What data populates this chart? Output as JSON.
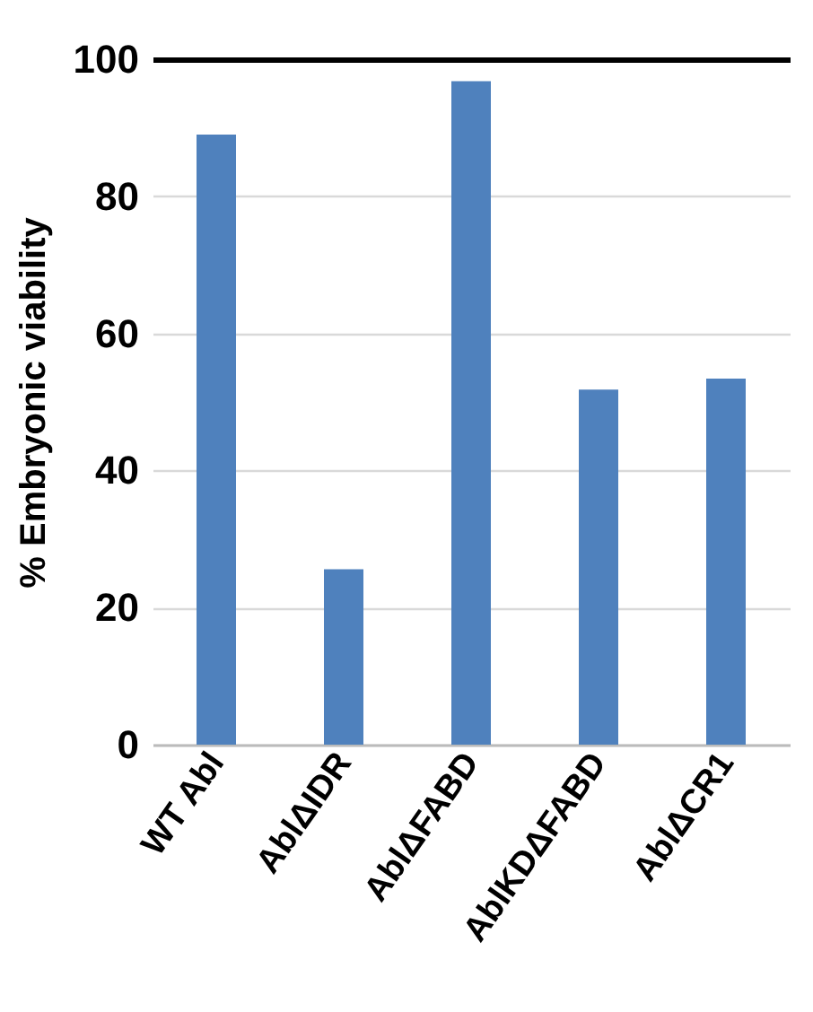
{
  "chart_data": {
    "type": "bar",
    "ylabel": "% Embryonic viability",
    "categories": [
      "WT Abl",
      "AblΔIDR",
      "AblΔFABD",
      "AblKDΔFABD",
      "AblΔCR1"
    ],
    "values": [
      89,
      25.6,
      96.8,
      51.8,
      53.4
    ],
    "color": "#4f81bd",
    "ylim": [
      0,
      100
    ],
    "yticks": [
      0,
      20,
      40,
      60,
      80,
      100
    ],
    "grid": "y"
  }
}
